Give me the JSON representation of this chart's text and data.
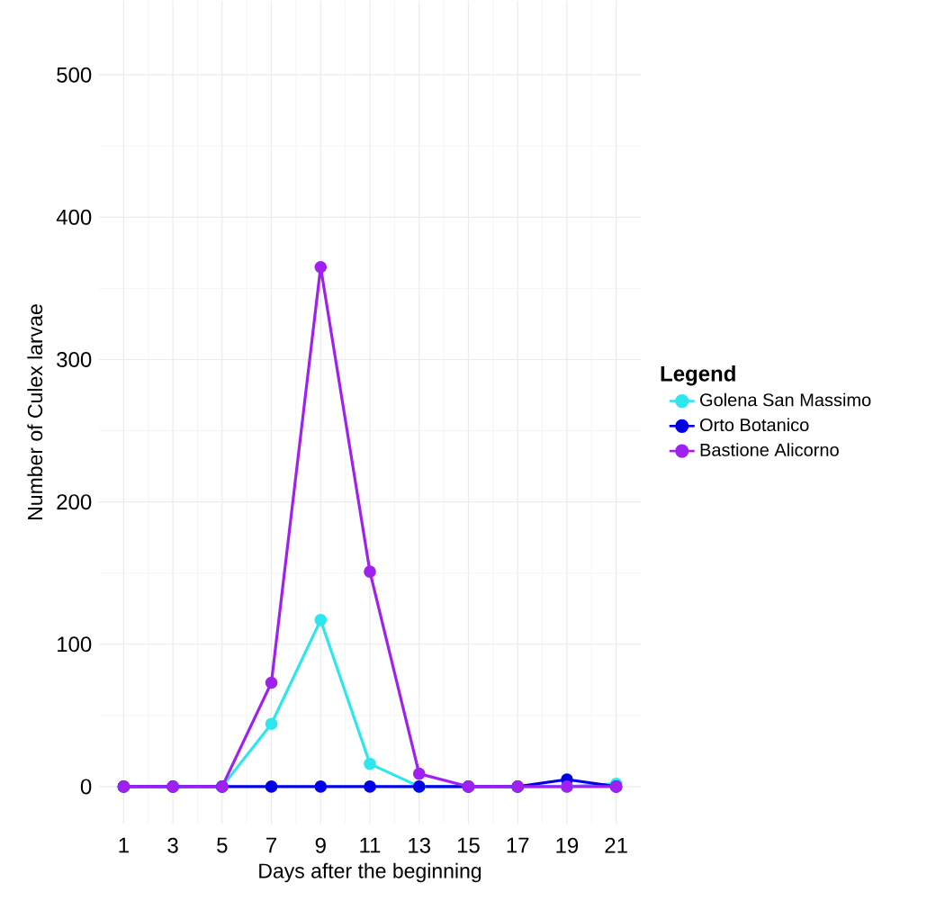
{
  "chart_data": {
    "type": "line",
    "xlabel": "Days after the beginning",
    "ylabel": "Number of Culex larvae",
    "legend_title": "Legend",
    "x": [
      1,
      3,
      5,
      7,
      9,
      11,
      13,
      15,
      17,
      19,
      21
    ],
    "series": [
      {
        "name": "Golena San Massimo",
        "color": "#2ee6ee",
        "values": [
          0,
          0,
          0,
          44,
          117,
          16,
          0,
          0,
          0,
          0,
          2
        ]
      },
      {
        "name": "Orto Botanico",
        "color": "#0000e6",
        "values": [
          0,
          0,
          0,
          0,
          0,
          0,
          0,
          0,
          0,
          5,
          0
        ]
      },
      {
        "name": "Bastione Alicorno",
        "color": "#a020f0",
        "values": [
          0,
          0,
          0,
          73,
          365,
          151,
          9,
          0,
          0,
          0,
          0
        ]
      }
    ],
    "xlim": [
      0,
      22
    ],
    "ylim": [
      -26,
      552
    ],
    "xticks": [
      1,
      3,
      5,
      7,
      9,
      11,
      13,
      15,
      17,
      19,
      21
    ],
    "yticks": [
      0,
      100,
      200,
      300,
      400,
      500
    ],
    "grid": true,
    "legend": "right",
    "marker": "circle",
    "line_style": "solid"
  }
}
